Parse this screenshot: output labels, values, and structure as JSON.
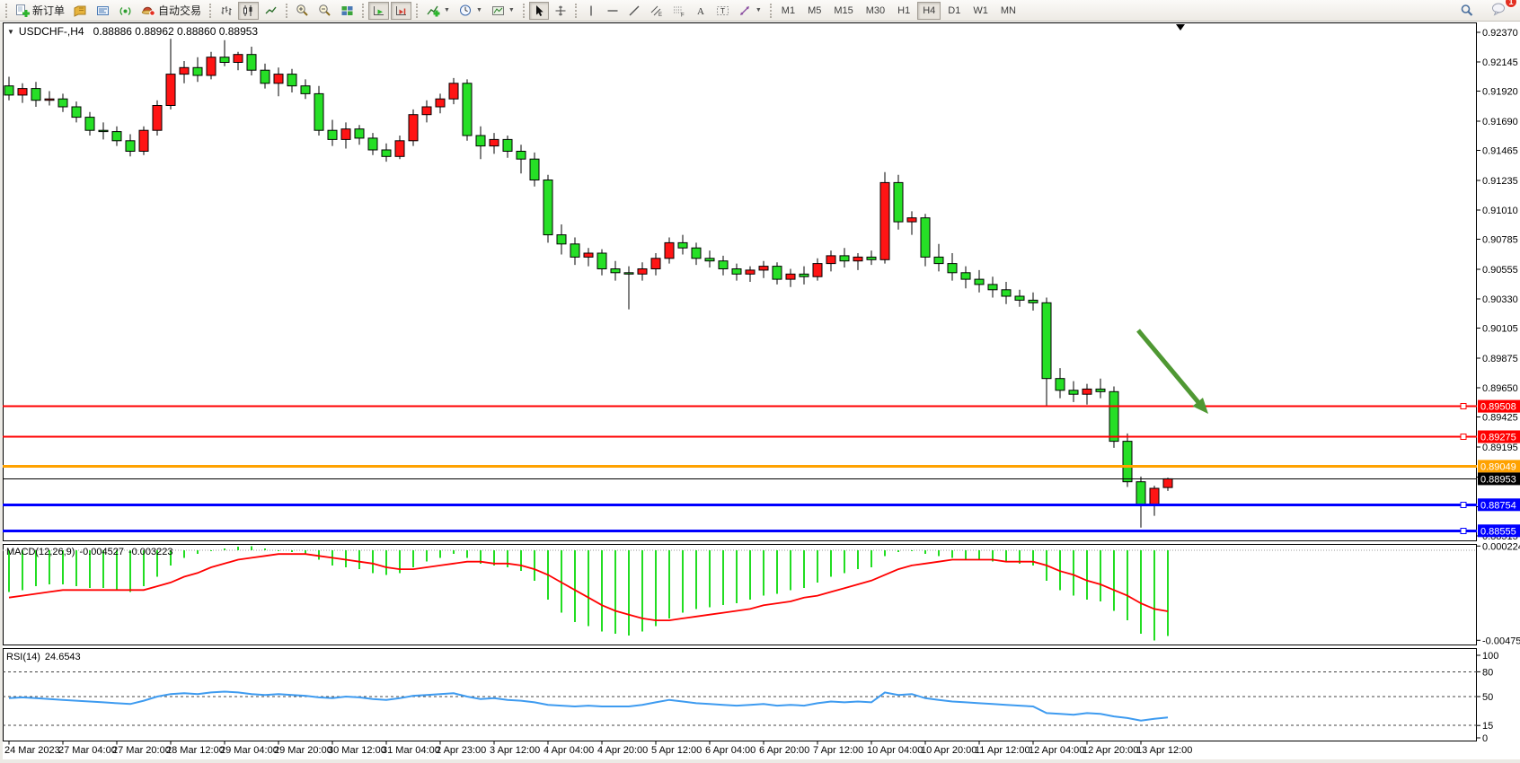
{
  "toolbar": {
    "new_order": "新订单",
    "auto_trading": "自动交易",
    "timeframes": [
      "M1",
      "M5",
      "M15",
      "M30",
      "H1",
      "H4",
      "D1",
      "W1",
      "MN"
    ],
    "active_timeframe": "H4",
    "notification_count": "1",
    "icons": [
      "new-order-icon",
      "charts-profile-icon",
      "market-watch-icon",
      "signals-icon",
      "auto-trading-icon",
      "bar-chart-icon",
      "candlestick-chart-icon",
      "line-chart-icon",
      "zoom-in-icon",
      "zoom-out-icon",
      "tile-windows-icon",
      "auto-scroll-icon",
      "chart-shift-icon",
      "indicators-icon",
      "periods-icon",
      "templates-icon",
      "cursor-icon",
      "crosshair-icon",
      "vertical-line-icon",
      "horizontal-line-icon",
      "trendline-icon",
      "equidistant-channel-icon",
      "fibonacci-icon",
      "text-icon",
      "text-label-icon",
      "shapes-icon",
      "search-icon",
      "chat-icon"
    ]
  },
  "chart": {
    "title_symbol": "USDCHF-,H4",
    "title_ohlc": "0.88886 0.88962 0.88860 0.88953",
    "price_axis_ticks": [
      "0.92370",
      "0.92145",
      "0.91920",
      "0.91690",
      "0.91465",
      "0.91235",
      "0.91010",
      "0.90785",
      "0.90555",
      "0.90330",
      "0.90105",
      "0.89875",
      "0.89650",
      "0.89425",
      "0.89195",
      "0.88965",
      "0.88740",
      "0.88515"
    ],
    "hlines": [
      {
        "price": "0.89508",
        "color": "#ff0000",
        "handle": true
      },
      {
        "price": "0.89275",
        "color": "#ff0000",
        "handle": true
      },
      {
        "price": "0.89049",
        "color": "#ffa200",
        "handle": false
      },
      {
        "price": "0.88754",
        "color": "#0000ff",
        "handle": true
      },
      {
        "price": "0.88555",
        "color": "#0000ff",
        "handle": true
      }
    ],
    "current_price": "0.88953",
    "arrow_color": "#4f9833"
  },
  "macd_panel": {
    "label": "MACD(12,26,9)",
    "value_main": "-0.004527",
    "value_signal": "-0.003223",
    "axis_max": "0.000224",
    "axis_min": "-0.004753"
  },
  "rsi_panel": {
    "label": "RSI(14)",
    "value": "24.6543",
    "axis_ticks": [
      "100",
      "80",
      "50",
      "15",
      "0"
    ],
    "levels": [
      80,
      50,
      15
    ]
  },
  "time_axis": {
    "labels": [
      "24 Mar 2023",
      "27 Mar 04:00",
      "27 Mar 20:00",
      "28 Mar 12:00",
      "29 Mar 04:00",
      "29 Mar 20:00",
      "30 Mar 12:00",
      "31 Mar 04:00",
      "2 Apr 23:00",
      "3 Apr 12:00",
      "4 Apr 04:00",
      "4 Apr 20:00",
      "5 Apr 12:00",
      "6 Apr 04:00",
      "6 Apr 20:00",
      "7 Apr 12:00",
      "10 Apr 04:00",
      "10 Apr 20:00",
      "11 Apr 12:00",
      "12 Apr 04:00",
      "12 Apr 20:00",
      "13 Apr 12:00"
    ]
  },
  "chart_data": {
    "type": "candlestick",
    "symbol": "USDCHF-",
    "timeframe": "H4",
    "title": "USDCHF-,H4  0.88886 0.88962 0.88860 0.88953",
    "current_bar": {
      "open": 0.88886,
      "high": 0.88962,
      "low": 0.8886,
      "close": 0.88953
    },
    "price_axis_range": [
      0.8846,
      0.9241
    ],
    "up_color": "#ff1414",
    "down_color": "#26df26",
    "candles_ohlc": [
      [
        0.9196,
        0.9203,
        0.9185,
        0.9189
      ],
      [
        0.9189,
        0.9198,
        0.9183,
        0.9194
      ],
      [
        0.9194,
        0.9199,
        0.918,
        0.9185
      ],
      [
        0.9185,
        0.9192,
        0.9181,
        0.9186
      ],
      [
        0.9186,
        0.919,
        0.9176,
        0.918
      ],
      [
        0.918,
        0.9184,
        0.9168,
        0.9172
      ],
      [
        0.9172,
        0.9176,
        0.9158,
        0.9162
      ],
      [
        0.9162,
        0.9168,
        0.9155,
        0.9161
      ],
      [
        0.9161,
        0.9165,
        0.915,
        0.9154
      ],
      [
        0.9154,
        0.9159,
        0.9142,
        0.9146
      ],
      [
        0.9146,
        0.9165,
        0.9143,
        0.9162
      ],
      [
        0.9162,
        0.9185,
        0.9158,
        0.9181
      ],
      [
        0.9181,
        0.9232,
        0.9178,
        0.9205
      ],
      [
        0.9205,
        0.9215,
        0.9198,
        0.921
      ],
      [
        0.921,
        0.9218,
        0.9199,
        0.9204
      ],
      [
        0.9204,
        0.9222,
        0.9201,
        0.9218
      ],
      [
        0.9218,
        0.9231,
        0.9211,
        0.9214
      ],
      [
        0.9214,
        0.9222,
        0.9208,
        0.922
      ],
      [
        0.922,
        0.9226,
        0.9204,
        0.9208
      ],
      [
        0.9208,
        0.9213,
        0.9194,
        0.9198
      ],
      [
        0.9198,
        0.921,
        0.9188,
        0.9205
      ],
      [
        0.9205,
        0.9209,
        0.9191,
        0.9196
      ],
      [
        0.9196,
        0.9201,
        0.9186,
        0.919
      ],
      [
        0.919,
        0.9196,
        0.9158,
        0.9162
      ],
      [
        0.9162,
        0.917,
        0.915,
        0.9155
      ],
      [
        0.9155,
        0.9168,
        0.9148,
        0.9163
      ],
      [
        0.9163,
        0.9166,
        0.9151,
        0.9156
      ],
      [
        0.9156,
        0.916,
        0.9143,
        0.9147
      ],
      [
        0.9147,
        0.9152,
        0.9138,
        0.9142
      ],
      [
        0.9142,
        0.9158,
        0.914,
        0.9154
      ],
      [
        0.9154,
        0.9178,
        0.915,
        0.9174
      ],
      [
        0.9174,
        0.9185,
        0.9168,
        0.918
      ],
      [
        0.918,
        0.919,
        0.9175,
        0.9186
      ],
      [
        0.9186,
        0.9202,
        0.9182,
        0.9198
      ],
      [
        0.9198,
        0.9201,
        0.9154,
        0.9158
      ],
      [
        0.9158,
        0.9165,
        0.914,
        0.915
      ],
      [
        0.915,
        0.916,
        0.9144,
        0.9155
      ],
      [
        0.9155,
        0.9158,
        0.9141,
        0.9146
      ],
      [
        0.9146,
        0.9151,
        0.9129,
        0.914
      ],
      [
        0.914,
        0.9145,
        0.9119,
        0.9124
      ],
      [
        0.9124,
        0.9128,
        0.9076,
        0.9082
      ],
      [
        0.9082,
        0.909,
        0.9067,
        0.9075
      ],
      [
        0.9075,
        0.908,
        0.9059,
        0.9065
      ],
      [
        0.9065,
        0.9072,
        0.9058,
        0.9068
      ],
      [
        0.9068,
        0.9071,
        0.9051,
        0.9056
      ],
      [
        0.9056,
        0.9062,
        0.9047,
        0.9053
      ],
      [
        0.9053,
        0.9058,
        0.9025,
        0.9052
      ],
      [
        0.9052,
        0.9061,
        0.9047,
        0.9056
      ],
      [
        0.9056,
        0.9068,
        0.9051,
        0.9064
      ],
      [
        0.9064,
        0.908,
        0.906,
        0.9076
      ],
      [
        0.9076,
        0.9082,
        0.9067,
        0.9072
      ],
      [
        0.9072,
        0.9076,
        0.9059,
        0.9064
      ],
      [
        0.9064,
        0.907,
        0.9057,
        0.9062
      ],
      [
        0.9062,
        0.9066,
        0.9051,
        0.9056
      ],
      [
        0.9056,
        0.906,
        0.9047,
        0.9052
      ],
      [
        0.9052,
        0.9058,
        0.9046,
        0.9055
      ],
      [
        0.9055,
        0.9062,
        0.9049,
        0.9058
      ],
      [
        0.9058,
        0.9061,
        0.9044,
        0.9048
      ],
      [
        0.9048,
        0.9056,
        0.9042,
        0.9052
      ],
      [
        0.9052,
        0.9058,
        0.9044,
        0.905
      ],
      [
        0.905,
        0.9064,
        0.9047,
        0.906
      ],
      [
        0.906,
        0.907,
        0.9054,
        0.9066
      ],
      [
        0.9066,
        0.9072,
        0.9057,
        0.9062
      ],
      [
        0.9062,
        0.9068,
        0.9055,
        0.9065
      ],
      [
        0.9065,
        0.907,
        0.9059,
        0.9063
      ],
      [
        0.9063,
        0.913,
        0.906,
        0.9122
      ],
      [
        0.9122,
        0.9128,
        0.9086,
        0.9092
      ],
      [
        0.9092,
        0.91,
        0.9082,
        0.9095
      ],
      [
        0.9095,
        0.9098,
        0.9058,
        0.9065
      ],
      [
        0.9065,
        0.9075,
        0.9054,
        0.906
      ],
      [
        0.906,
        0.9068,
        0.9047,
        0.9053
      ],
      [
        0.9053,
        0.9058,
        0.9041,
        0.9048
      ],
      [
        0.9048,
        0.9055,
        0.9038,
        0.9044
      ],
      [
        0.9044,
        0.905,
        0.9034,
        0.904
      ],
      [
        0.904,
        0.9046,
        0.9029,
        0.9035
      ],
      [
        0.9035,
        0.904,
        0.9027,
        0.9032
      ],
      [
        0.9032,
        0.9038,
        0.9024,
        0.903
      ],
      [
        0.903,
        0.9034,
        0.8951,
        0.8972
      ],
      [
        0.8972,
        0.898,
        0.8957,
        0.8963
      ],
      [
        0.8963,
        0.897,
        0.8954,
        0.896
      ],
      [
        0.896,
        0.8968,
        0.8952,
        0.8964
      ],
      [
        0.8964,
        0.8972,
        0.8957,
        0.8962
      ],
      [
        0.8962,
        0.8966,
        0.8919,
        0.8924
      ],
      [
        0.8924,
        0.893,
        0.8889,
        0.8893
      ],
      [
        0.8893,
        0.8897,
        0.8858,
        0.8876
      ],
      [
        0.8876,
        0.889,
        0.8867,
        0.8888
      ],
      [
        0.88886,
        0.88962,
        0.8886,
        0.88953
      ]
    ],
    "indicators": {
      "macd": {
        "params": "12,26,9",
        "histogram_color": "#22dd22",
        "signal_color": "#ff0000",
        "range": [
          -0.004753,
          0.000224
        ],
        "histogram": [
          -0.0022,
          -0.0021,
          -0.0019,
          -0.0018,
          -0.0018,
          -0.0019,
          -0.002,
          -0.002,
          -0.0021,
          -0.0022,
          -0.0019,
          -0.0014,
          -0.0008,
          -0.0004,
          -0.0002,
          0.0,
          0.0001,
          0.0002,
          0.00022,
          0.0001,
          0.0,
          -0.0001,
          -0.0002,
          -0.0005,
          -0.0008,
          -0.0009,
          -0.001,
          -0.0012,
          -0.0013,
          -0.0012,
          -0.0009,
          -0.0006,
          -0.0004,
          -0.0002,
          -0.0004,
          -0.0007,
          -0.0008,
          -0.0009,
          -0.0011,
          -0.0016,
          -0.0026,
          -0.0033,
          -0.0038,
          -0.004,
          -0.0043,
          -0.0044,
          -0.0045,
          -0.0043,
          -0.004,
          -0.0036,
          -0.0033,
          -0.0031,
          -0.003,
          -0.0029,
          -0.0028,
          -0.0026,
          -0.0024,
          -0.0023,
          -0.0021,
          -0.002,
          -0.0017,
          -0.0014,
          -0.0012,
          -0.001,
          -0.0009,
          -0.0003,
          -0.0001,
          0.0,
          -0.0002,
          -0.0003,
          -0.0004,
          -0.0005,
          -0.0005,
          -0.0006,
          -0.0006,
          -0.0007,
          -0.0008,
          -0.0016,
          -0.0021,
          -0.0024,
          -0.0026,
          -0.0027,
          -0.0032,
          -0.0037,
          -0.0044,
          -0.004753,
          -0.004527
        ],
        "signal": [
          -0.0025,
          -0.0024,
          -0.0023,
          -0.0022,
          -0.0021,
          -0.0021,
          -0.0021,
          -0.0021,
          -0.0021,
          -0.0021,
          -0.0021,
          -0.0019,
          -0.0017,
          -0.0014,
          -0.0012,
          -0.0009,
          -0.0007,
          -0.0005,
          -0.0004,
          -0.0003,
          -0.0002,
          -0.0002,
          -0.0002,
          -0.0003,
          -0.0004,
          -0.0005,
          -0.0006,
          -0.0007,
          -0.0009,
          -0.001,
          -0.001,
          -0.0009,
          -0.0008,
          -0.0007,
          -0.0006,
          -0.0006,
          -0.0007,
          -0.0007,
          -0.0008,
          -0.001,
          -0.0013,
          -0.0017,
          -0.0021,
          -0.0025,
          -0.0029,
          -0.0032,
          -0.0034,
          -0.0036,
          -0.0037,
          -0.0037,
          -0.0036,
          -0.0035,
          -0.0034,
          -0.0033,
          -0.0032,
          -0.0031,
          -0.0029,
          -0.0028,
          -0.0027,
          -0.0025,
          -0.0024,
          -0.0022,
          -0.002,
          -0.0018,
          -0.0016,
          -0.0013,
          -0.001,
          -0.0008,
          -0.0007,
          -0.0006,
          -0.0005,
          -0.0005,
          -0.0005,
          -0.0005,
          -0.0006,
          -0.0006,
          -0.0006,
          -0.0008,
          -0.0011,
          -0.0013,
          -0.0016,
          -0.0018,
          -0.0021,
          -0.0024,
          -0.0028,
          -0.0031,
          -0.003223
        ]
      },
      "rsi": {
        "params": "14",
        "color": "#3e9bf0",
        "range": [
          0,
          100
        ],
        "values": [
          48,
          49,
          48,
          47,
          46,
          45,
          44,
          43,
          42,
          41,
          45,
          50,
          53,
          54,
          53,
          55,
          56,
          55,
          53,
          52,
          53,
          52,
          51,
          49,
          48,
          50,
          49,
          47,
          46,
          48,
          51,
          52,
          53,
          54,
          50,
          47,
          48,
          46,
          45,
          43,
          40,
          39,
          38,
          39,
          38,
          38,
          38,
          40,
          43,
          46,
          44,
          42,
          41,
          40,
          39,
          40,
          41,
          39,
          40,
          39,
          42,
          44,
          43,
          44,
          43,
          55,
          52,
          53,
          48,
          46,
          44,
          43,
          42,
          41,
          40,
          39,
          38,
          30,
          29,
          28,
          30,
          29,
          26,
          24,
          21,
          23,
          24.6543
        ]
      }
    }
  }
}
